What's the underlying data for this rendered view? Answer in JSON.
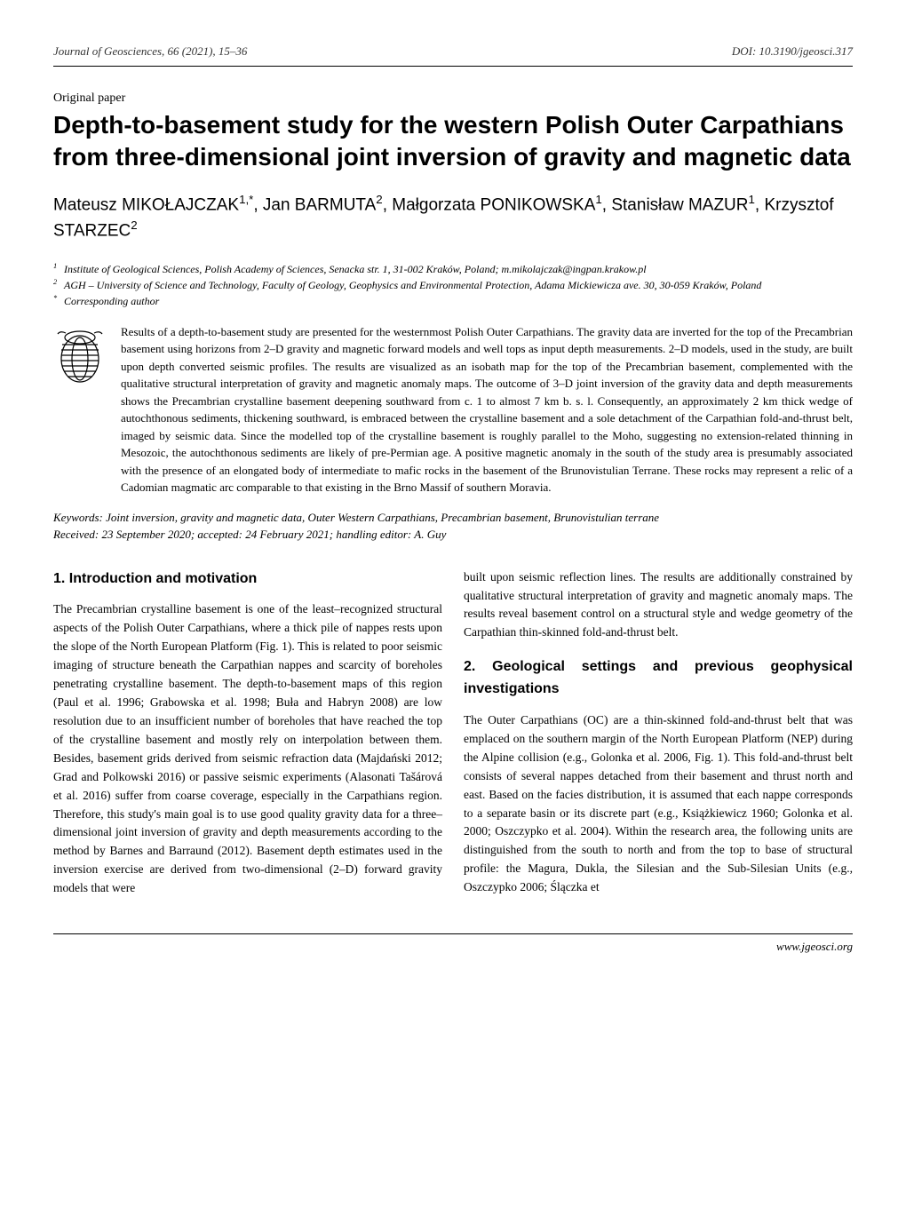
{
  "header": {
    "journal": "Journal of Geosciences, 66 (2021), 15–36",
    "doi": "DOI: 10.3190/jgeosci.317"
  },
  "paper_type": "Original paper",
  "title": "Depth-to-basement study for the western Polish Outer Carpathians from three-dimensional joint inversion of gravity and magnetic data",
  "authors_html": "Mateusz MIKOŁAJCZAK<sup>1,*</sup>, Jan BARMUTA<sup>2</sup>, Małgorzata PONIKOWSKA<sup>1</sup>, Stanisław MAZUR<sup>1</sup>, Krzysztof STARZEC<sup>2</sup>",
  "affiliations": [
    {
      "sup": "1",
      "text": "Institute of Geological Sciences, Polish Academy of Sciences, Senacka str. 1, 31-002 Kraków, Poland; m.mikolajczak@ingpan.krakow.pl"
    },
    {
      "sup": "2",
      "text": "AGH – University of Science and Technology, Faculty of Geology, Geophysics and Environmental Protection, Adama Mickiewicza ave. 30, 30-059 Kraków, Poland"
    },
    {
      "sup": "*",
      "text": "Corresponding author"
    }
  ],
  "abstract": "Results of a depth-to-basement study are presented for the westernmost Polish Outer Carpathians. The gravity data are inverted for the top of the Precambrian basement using horizons from 2–D gravity and magnetic forward models and well tops as input depth measurements. 2–D models, used in the study, are built upon depth converted seismic profiles. The results are visualized as an isobath map for the top of the Precambrian basement, complemented with the qualitative structural interpretation of gravity and magnetic anomaly maps. The outcome of 3–D joint inversion of the gravity data and depth measurements shows the Precambrian crystalline basement deepening southward from c. 1 to almost 7 km b. s. l. Consequently, an approximately 2 km thick wedge of autochthonous sediments, thickening southward, is embraced between the crystalline basement and a sole detachment of the Carpathian fold-and-thrust belt, imaged by seismic data. Since the modelled top of the crystalline basement is roughly parallel to the Moho, suggesting no extension-related thinning in Mesozoic, the autochthonous sediments are likely of pre-Permian age. A positive magnetic anomaly in the south of the study area is presumably associated with the presence of an elongated body of intermediate to mafic rocks in the basement of the Brunovistulian Terrane. These rocks may represent a relic of a Cadomian magmatic arc comparable to that existing in the Brno Massif of southern Moravia.",
  "keywords_line1": "Keywords: Joint inversion, gravity and magnetic data, Outer Western Carpathians, Precambrian basement, Brunovistulian terrane",
  "keywords_line2": "Received: 23 September 2020; accepted: 24 February 2021; handling editor: A. Guy",
  "col_left": {
    "heading": "1. Introduction and motivation",
    "para": "The Precambrian crystalline basement is one of the least–recognized structural aspects of the Polish Outer Carpathians, where a thick pile of nappes rests upon the slope of the North European Platform (Fig. 1). This is related to poor seismic imaging of structure beneath the Carpathian nappes and scarcity of boreholes penetrating crystalline basement. The depth-to-basement maps of this region (Paul et al. 1996; Grabowska et al. 1998; Buła and Habryn 2008) are low resolution due to an insufficient number of boreholes that have reached the top of the crystalline basement and mostly rely on interpolation between them. Besides, basement grids derived from seismic refraction data (Majdański 2012; Grad and Polkowski 2016) or passive seismic experiments (Alasonati Tašárová et al. 2016) suffer from coarse coverage, especially in the Carpathians region. Therefore, this study's main goal is to use good quality gravity data for a three–dimensional joint inversion of gravity and depth measurements according to the method by Barnes and Barraund (2012). Basement depth estimates used in the inversion exercise are derived from two-dimensional (2–D) forward gravity models that were"
  },
  "col_right": {
    "intro_cont": "built upon seismic reflection lines. The results are additionally constrained by qualitative structural interpretation of gravity and magnetic anomaly maps. The results reveal basement control on a structural style and wedge geometry of the Carpathian thin-skinned fold-and-thrust belt.",
    "heading": "2. Geological settings and previous geophysical investigations",
    "para": "The Outer Carpathians (OC) are a thin-skinned fold-and-thrust belt that was emplaced on the southern margin of the North European Platform (NEP) during the Alpine collision (e.g., Golonka et al. 2006, Fig. 1). This fold-and-thrust belt consists of several nappes detached from their basement and thrust north and east. Based on the facies distribution, it is assumed that each nappe corresponds to a separate basin or its discrete part (e.g., Książkiewicz 1960; Golonka et al. 2000; Oszczypko et al. 2004). Within the research area, the following units are distinguished from the south to north and from the top to base of structural profile: the Magura, Dukla, the Silesian and the Sub-Silesian Units (e.g., Oszczypko 2006; Ślączka et"
  },
  "footer": "www.jgeosci.org",
  "colors": {
    "text": "#000000",
    "background": "#ffffff",
    "muted": "#333333",
    "icon_stroke": "#000000"
  }
}
